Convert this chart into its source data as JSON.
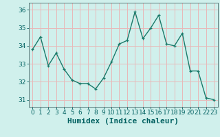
{
  "x": [
    0,
    1,
    2,
    3,
    4,
    5,
    6,
    7,
    8,
    9,
    10,
    11,
    12,
    13,
    14,
    15,
    16,
    17,
    18,
    19,
    20,
    21,
    22,
    23
  ],
  "y": [
    33.8,
    34.5,
    32.9,
    33.6,
    32.7,
    32.1,
    31.9,
    31.9,
    31.6,
    32.2,
    33.1,
    34.1,
    34.3,
    35.9,
    34.4,
    35.0,
    35.7,
    34.1,
    34.0,
    34.7,
    32.6,
    32.6,
    31.1,
    31.0
  ],
  "line_color": "#1a7a6a",
  "marker": "+",
  "bg_color": "#d0f0ec",
  "grid_color": "#e8b8b8",
  "xlabel": "Humidex (Indice chaleur)",
  "ylim": [
    30.6,
    36.4
  ],
  "xlim": [
    -0.5,
    23.5
  ],
  "yticks": [
    31,
    32,
    33,
    34,
    35,
    36
  ],
  "xticks": [
    0,
    1,
    2,
    3,
    4,
    5,
    6,
    7,
    8,
    9,
    10,
    11,
    12,
    13,
    14,
    15,
    16,
    17,
    18,
    19,
    20,
    21,
    22,
    23
  ],
  "xlabel_fontsize": 8,
  "tick_fontsize": 6.5,
  "line_width": 1.0,
  "marker_size": 3.5,
  "label_color": "#006060"
}
